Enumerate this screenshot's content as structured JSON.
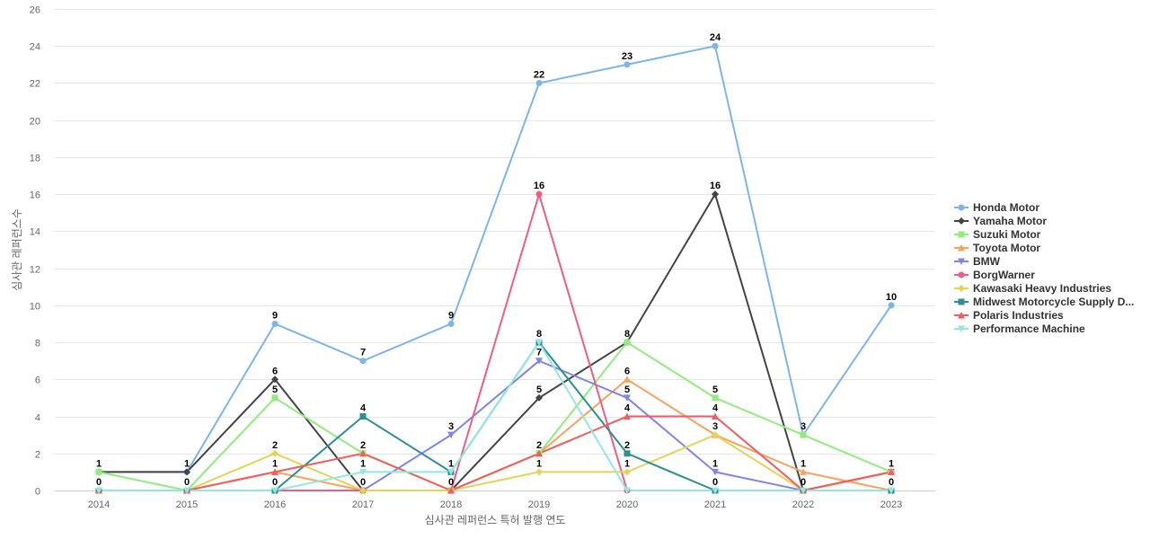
{
  "chart_data": {
    "type": "line",
    "title": "",
    "xlabel": "심사관 레퍼런스 특허 발행 연도",
    "ylabel": "심사관 레퍼런스수",
    "categories": [
      "2014",
      "2015",
      "2016",
      "2017",
      "2018",
      "2019",
      "2020",
      "2021",
      "2022",
      "2023"
    ],
    "ylim": [
      0,
      26
    ],
    "yticks": [
      0,
      2,
      4,
      6,
      8,
      10,
      12,
      14,
      16,
      18,
      20,
      22,
      24,
      26
    ],
    "grid": true,
    "legend_position": "right",
    "series": [
      {
        "name": "Honda Motor",
        "color": "#7cb5ec",
        "marker": "circle",
        "values": [
          1,
          1,
          9,
          7,
          9,
          22,
          23,
          24,
          3,
          10
        ]
      },
      {
        "name": "Yamaha Motor",
        "color": "#434348",
        "marker": "diamond",
        "values": [
          1,
          1,
          6,
          0,
          0,
          5,
          8,
          16,
          0,
          1
        ]
      },
      {
        "name": "Suzuki Motor",
        "color": "#90ed7d",
        "marker": "square",
        "values": [
          1,
          0,
          5,
          2,
          0,
          2,
          8,
          5,
          3,
          1
        ]
      },
      {
        "name": "Toyota Motor",
        "color": "#f7a35c",
        "marker": "triangle",
        "values": [
          0,
          0,
          1,
          0,
          0,
          2,
          6,
          3,
          1,
          0
        ]
      },
      {
        "name": "BMW",
        "color": "#8085e9",
        "marker": "triangle-down",
        "values": [
          0,
          0,
          0,
          0,
          3,
          7,
          5,
          1,
          0,
          1
        ]
      },
      {
        "name": "BorgWarner",
        "color": "#f15c80",
        "marker": "circle",
        "values": [
          0,
          0,
          0,
          0,
          0,
          16,
          0,
          0,
          0,
          1
        ]
      },
      {
        "name": "Kawasaki Heavy Industries",
        "color": "#e4d354",
        "marker": "diamond",
        "values": [
          0,
          0,
          2,
          0,
          0,
          1,
          1,
          3,
          0,
          1
        ]
      },
      {
        "name": "Midwest Motorcycle Supply D...",
        "color": "#2b908f",
        "marker": "square",
        "values": [
          0,
          0,
          0,
          4,
          1,
          8,
          2,
          0,
          0,
          0
        ]
      },
      {
        "name": "Polaris Industries",
        "color": "#f45b5b",
        "marker": "triangle",
        "values": [
          0,
          0,
          1,
          2,
          0,
          2,
          4,
          4,
          0,
          1
        ]
      },
      {
        "name": "Performance Machine",
        "color": "#91e8e1",
        "marker": "triangle-down",
        "values": [
          0,
          0,
          0,
          1,
          1,
          8,
          0,
          0,
          0,
          0
        ]
      }
    ],
    "data_labels": [
      {
        "category": "2014",
        "value": 1
      },
      {
        "category": "2014",
        "value": 0
      },
      {
        "category": "2015",
        "value": 1
      },
      {
        "category": "2015",
        "value": 0
      },
      {
        "category": "2016",
        "value": 9
      },
      {
        "category": "2016",
        "value": 6
      },
      {
        "category": "2016",
        "value": 5
      },
      {
        "category": "2016",
        "value": 2
      },
      {
        "category": "2016",
        "value": 1
      },
      {
        "category": "2016",
        "value": 0
      },
      {
        "category": "2017",
        "value": 7
      },
      {
        "category": "2017",
        "value": 4
      },
      {
        "category": "2017",
        "value": 2
      },
      {
        "category": "2017",
        "value": 1
      },
      {
        "category": "2017",
        "value": 0
      },
      {
        "category": "2018",
        "value": 9
      },
      {
        "category": "2018",
        "value": 3
      },
      {
        "category": "2018",
        "value": 1
      },
      {
        "category": "2018",
        "value": 0
      },
      {
        "category": "2019",
        "value": 22
      },
      {
        "category": "2019",
        "value": 16
      },
      {
        "category": "2019",
        "value": 8
      },
      {
        "category": "2019",
        "value": 7
      },
      {
        "category": "2019",
        "value": 5
      },
      {
        "category": "2019",
        "value": 2
      },
      {
        "category": "2019",
        "value": 1
      },
      {
        "category": "2020",
        "value": 23
      },
      {
        "category": "2020",
        "value": 8
      },
      {
        "category": "2020",
        "value": 6
      },
      {
        "category": "2020",
        "value": 5
      },
      {
        "category": "2020",
        "value": 4
      },
      {
        "category": "2020",
        "value": 2
      },
      {
        "category": "2020",
        "value": 1
      },
      {
        "category": "2021",
        "value": 24
      },
      {
        "category": "2021",
        "value": 16
      },
      {
        "category": "2021",
        "value": 5
      },
      {
        "category": "2021",
        "value": 4
      },
      {
        "category": "2021",
        "value": 3
      },
      {
        "category": "2021",
        "value": 1
      },
      {
        "category": "2021",
        "value": 0
      },
      {
        "category": "2022",
        "value": 3
      },
      {
        "category": "2022",
        "value": 1
      },
      {
        "category": "2022",
        "value": 0
      },
      {
        "category": "2023",
        "value": 10
      },
      {
        "category": "2023",
        "value": 1
      },
      {
        "category": "2023",
        "value": 0
      }
    ]
  }
}
